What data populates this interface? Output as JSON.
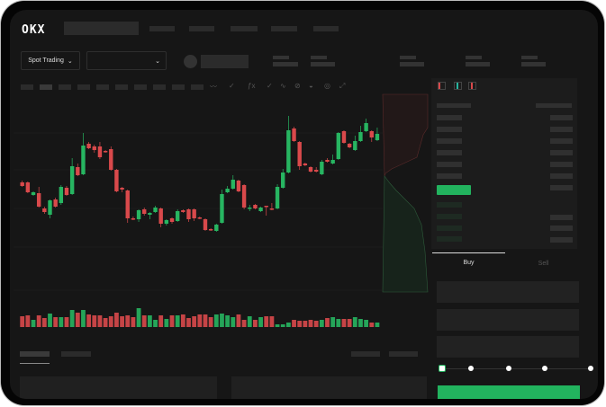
{
  "header": {
    "logo": "OKX"
  },
  "toolbar": {
    "spot_trading_label": "Spot Trading"
  },
  "trade_panel": {
    "buy_label": "Buy",
    "sell_label": "Sell",
    "leverage_steps": 5
  },
  "colors": {
    "up": "#27b561",
    "down": "#d9494b",
    "background": "#161616",
    "accent": "#22b35e"
  },
  "chart_data": {
    "type": "candlestick",
    "candles": [
      [
        167,
        169,
        162,
        163
      ],
      [
        167,
        168,
        155,
        156
      ],
      [
        153,
        157,
        152,
        156
      ],
      [
        155,
        162,
        139,
        140
      ],
      [
        138,
        140,
        132,
        134
      ],
      [
        131,
        148,
        127,
        147
      ],
      [
        148,
        150,
        139,
        140
      ],
      [
        144,
        164,
        142,
        162
      ],
      [
        161,
        163,
        152,
        153
      ],
      [
        154,
        194,
        153,
        185
      ],
      [
        184,
        188,
        174,
        175
      ],
      [
        176,
        222,
        175,
        208
      ],
      [
        210,
        212,
        204,
        205
      ],
      [
        207,
        209,
        200,
        203
      ],
      [
        207,
        212,
        193,
        195
      ],
      [
        202,
        203,
        200,
        201
      ],
      [
        204,
        207,
        180,
        181
      ],
      [
        181,
        182,
        156,
        157
      ],
      [
        161,
        162,
        156,
        159
      ],
      [
        158,
        159,
        122,
        127
      ],
      [
        127,
        129,
        125,
        126
      ],
      [
        126,
        137,
        123,
        136
      ],
      [
        137,
        139,
        130,
        132
      ],
      [
        131,
        134,
        126,
        133
      ],
      [
        134,
        141,
        133,
        139
      ],
      [
        138,
        139,
        117,
        121
      ],
      [
        121,
        126,
        119,
        125
      ],
      [
        127,
        128,
        121,
        123
      ],
      [
        124,
        137,
        123,
        135
      ],
      [
        136,
        137,
        133,
        134
      ],
      [
        137,
        138,
        123,
        126
      ],
      [
        137,
        138,
        124,
        127
      ],
      [
        128,
        129,
        126,
        127
      ],
      [
        126,
        127,
        113,
        114
      ],
      [
        115,
        116,
        113,
        114
      ],
      [
        113,
        121,
        112,
        120
      ],
      [
        122,
        159,
        121,
        154
      ],
      [
        156,
        163,
        155,
        160
      ],
      [
        160,
        175,
        159,
        170
      ],
      [
        169,
        170,
        156,
        157
      ],
      [
        164,
        165,
        137,
        139
      ],
      [
        138,
        142,
        135,
        139
      ],
      [
        142,
        143,
        137,
        138
      ],
      [
        135,
        140,
        134,
        139
      ],
      [
        141,
        141,
        130,
        140
      ],
      [
        138,
        144,
        136,
        137
      ],
      [
        138,
        165,
        137,
        162
      ],
      [
        161,
        182,
        160,
        178
      ],
      [
        178,
        241,
        177,
        225
      ],
      [
        227,
        229,
        212,
        213
      ],
      [
        212,
        213,
        181,
        185
      ],
      [
        188,
        189,
        185,
        186
      ],
      [
        184,
        185,
        178,
        179
      ],
      [
        181,
        184,
        178,
        179
      ],
      [
        176,
        192,
        175,
        190
      ],
      [
        192,
        194,
        189,
        190
      ],
      [
        188,
        198,
        187,
        192
      ],
      [
        193,
        223,
        192,
        222
      ],
      [
        224,
        225,
        210,
        211
      ],
      [
        210,
        211,
        205,
        206
      ],
      [
        203,
        219,
        202,
        213
      ],
      [
        213,
        230,
        212,
        223
      ],
      [
        224,
        238,
        223,
        233
      ],
      [
        224,
        225,
        212,
        217
      ],
      [
        214,
        228,
        213,
        221
      ]
    ],
    "volume": [
      12,
      13,
      8,
      13,
      10,
      15,
      11,
      11,
      11,
      19,
      16,
      19,
      14,
      13,
      13,
      10,
      12,
      16,
      12,
      13,
      11,
      21,
      13,
      13,
      8,
      13,
      9,
      13,
      13,
      14,
      10,
      12,
      14,
      14,
      11,
      14,
      15,
      13,
      11,
      14,
      8,
      12,
      8,
      11,
      12,
      12,
      3,
      3,
      5,
      8,
      7,
      7,
      8,
      7,
      8,
      10,
      11,
      9,
      9,
      9,
      11,
      9,
      8,
      5,
      5
    ],
    "grid": true
  }
}
